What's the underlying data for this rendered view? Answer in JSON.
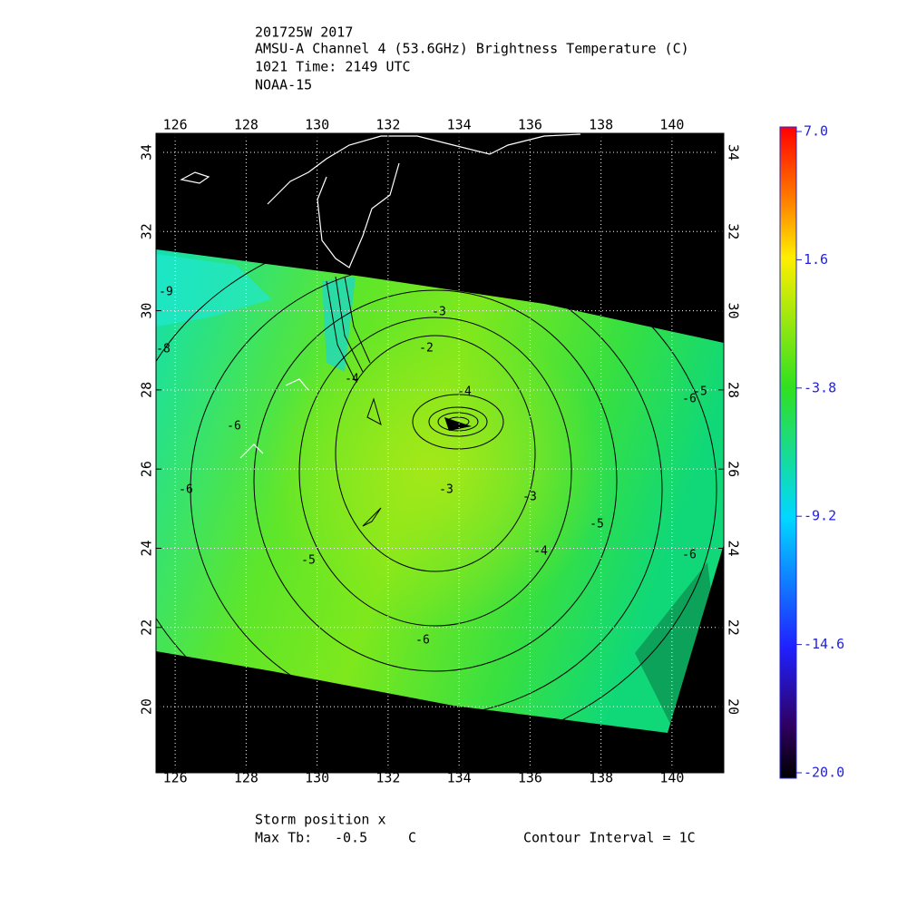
{
  "header": {
    "lines": [
      "201725W 2017",
      "AMSU-A Channel 4 (53.6GHz) Brightness Temperature (C)",
      "1021 Time: 2149 UTC",
      "NOAA-15"
    ]
  },
  "map": {
    "lon_lim": [
      125.46,
      141.46
    ],
    "lat_lim": [
      18.33,
      34.48
    ],
    "lon_ticks": [
      126,
      128,
      130,
      132,
      134,
      136,
      138,
      140
    ],
    "lat_ticks": [
      20,
      22,
      24,
      26,
      28,
      30,
      32,
      34
    ],
    "grid": true,
    "contour_labels": [
      -9,
      -8,
      -6,
      -6,
      -5,
      -4,
      -3,
      -2,
      -4,
      -3,
      -3,
      -4,
      -5,
      -6,
      -5,
      -6,
      -6
    ]
  },
  "colorbar": {
    "lim": [
      -20,
      7
    ],
    "ticks": [
      {
        "value": -20,
        "label": "-20.0"
      },
      -14.6,
      -9.2,
      -3.8,
      1.6,
      {
        "value": 7,
        "label": "7.0"
      }
    ]
  },
  "footer": {
    "storm_position": "Storm position x",
    "max_tb_label": "Max Tb:",
    "max_tb_value": "-0.5",
    "max_tb_unit": "C",
    "contour_interval": "Contour Interval = 1C"
  }
}
